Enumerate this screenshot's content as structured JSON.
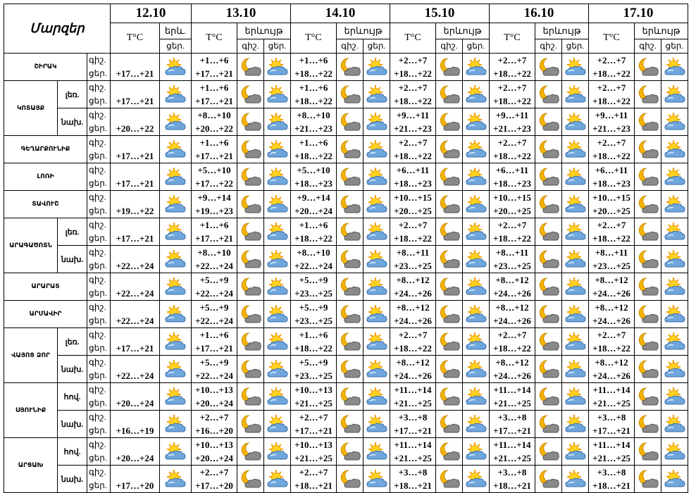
{
  "header": {
    "title": "Մարզեր",
    "temp": "T°C",
    "phenomenon": "երևույթ",
    "phenomenon_short": "երև.",
    "night": "գիշ.",
    "day": "ցեր."
  },
  "dates": [
    "12.10",
    "13.10",
    "14.10",
    "15.10",
    "16.10",
    "17.10"
  ],
  "regions": [
    {
      "name": "ՇԻՐԱԿ",
      "zones": [
        {
          "forecast": [
            [
              "+17…+21"
            ],
            [
              "+1…+6",
              "+17…+21"
            ],
            [
              "+1…+6",
              "+18…+22"
            ],
            [
              "+2…+7",
              "+18…+22"
            ],
            [
              "+2…+7",
              "+18…+22"
            ],
            [
              "+2…+7",
              "+18…+22"
            ]
          ]
        }
      ]
    },
    {
      "name": "ԿՈՏԱՅՔ",
      "zones": [
        {
          "zone": "լեռ.",
          "forecast": [
            [
              "+17…+21"
            ],
            [
              "+1…+6",
              "+17…+21"
            ],
            [
              "+1…+6",
              "+18…+22"
            ],
            [
              "+2…+7",
              "+18…+22"
            ],
            [
              "+2…+7",
              "+18…+22"
            ],
            [
              "+2…+7",
              "+18…+22"
            ]
          ]
        },
        {
          "zone": "նախ.",
          "forecast": [
            [
              "+20…+22"
            ],
            [
              "+8…+10",
              "+20…+22"
            ],
            [
              "+8…+10",
              "+21…+23"
            ],
            [
              "+9…+11",
              "+21…+23"
            ],
            [
              "+9…+11",
              "+21…+23"
            ],
            [
              "+9…+11",
              "+21…+23"
            ]
          ]
        }
      ]
    },
    {
      "name": "ԳԵՂԱՐՔՈՒՆԻՔ",
      "zones": [
        {
          "forecast": [
            [
              "+17…+21"
            ],
            [
              "+1…+6",
              "+17…+21"
            ],
            [
              "+1…+6",
              "+18…+22"
            ],
            [
              "+2…+7",
              "+18…+22"
            ],
            [
              "+2…+7",
              "+18…+22"
            ],
            [
              "+2…+7",
              "+18…+22"
            ]
          ]
        }
      ]
    },
    {
      "name": "ԼՈՌԻ",
      "zones": [
        {
          "forecast": [
            [
              "+17…+21"
            ],
            [
              "+5…+10",
              "+17…+22"
            ],
            [
              "+5…+10",
              "+18…+23"
            ],
            [
              "+6…+11",
              "+18…+23"
            ],
            [
              "+6…+11",
              "+18…+23"
            ],
            [
              "+6…+11",
              "+18…+23"
            ]
          ]
        }
      ]
    },
    {
      "name": "ՏԱՎՈՒՇ",
      "zones": [
        {
          "forecast": [
            [
              "+19…+22"
            ],
            [
              "+9…+14",
              "+19…+23"
            ],
            [
              "+9…+14",
              "+20…+24"
            ],
            [
              "+10…+15",
              "+20…+25"
            ],
            [
              "+10…+15",
              "+20…+25"
            ],
            [
              "+10…+15",
              "+20…+25"
            ]
          ]
        }
      ]
    },
    {
      "name": "ԱՐԱԳԱԾՈՏՆ",
      "zones": [
        {
          "zone": "լեռ.",
          "forecast": [
            [
              "+17…+21"
            ],
            [
              "+1…+6",
              "+17…+21"
            ],
            [
              "+1…+6",
              "+18…+22"
            ],
            [
              "+2…+7",
              "+18…+22"
            ],
            [
              "+2…+7",
              "+18…+22"
            ],
            [
              "+2…+7",
              "+18…+22"
            ]
          ]
        },
        {
          "zone": "նախ.",
          "forecast": [
            [
              "+22…+24"
            ],
            [
              "+8…+10",
              "+22…+24"
            ],
            [
              "+8…+10",
              "+22…+24"
            ],
            [
              "+8…+11",
              "+23…+25"
            ],
            [
              "+8…+11",
              "+23…+25"
            ],
            [
              "+8…+11",
              "+23…+25"
            ]
          ]
        }
      ]
    },
    {
      "name": "ԱՐԱՐԱՏ",
      "zones": [
        {
          "forecast": [
            [
              "+22…+24"
            ],
            [
              "+5…+9",
              "+22…+24"
            ],
            [
              "+5…+9",
              "+23…+25"
            ],
            [
              "+8…+12",
              "+24…+26"
            ],
            [
              "+8…+12",
              "+24…+26"
            ],
            [
              "+8…+12",
              "+24…+26"
            ]
          ]
        }
      ]
    },
    {
      "name": "ԱՐՄԱՎԻՐ",
      "zones": [
        {
          "forecast": [
            [
              "+22…+24"
            ],
            [
              "+5…+9",
              "+22…+24"
            ],
            [
              "+5…+9",
              "+23…+25"
            ],
            [
              "+8…+12",
              "+24…+26"
            ],
            [
              "+8…+12",
              "+24…+26"
            ],
            [
              "+8…+12",
              "+24…+26"
            ]
          ]
        }
      ]
    },
    {
      "name": "ՎԱՅՈՑ ՁՈՐ",
      "zones": [
        {
          "zone": "լեռ.",
          "forecast": [
            [
              "+17…+21"
            ],
            [
              "+1…+6",
              "+17…+21"
            ],
            [
              "+1…+6",
              "+18…+22"
            ],
            [
              "+2…+7",
              "+18…+22"
            ],
            [
              "+2…+7",
              "+18…+22"
            ],
            [
              "+2…+7",
              "+18…+22"
            ]
          ]
        },
        {
          "zone": "նախ.",
          "forecast": [
            [
              "+22…+24"
            ],
            [
              "+5…+9",
              "+22…+24"
            ],
            [
              "+5…+9",
              "+23…+25"
            ],
            [
              "+8…+12",
              "+24…+26"
            ],
            [
              "+8…+12",
              "+24…+26"
            ],
            [
              "+8…+12",
              "+24…+26"
            ]
          ]
        }
      ]
    },
    {
      "name": "ՍՅՈՒՆԻՔ",
      "zones": [
        {
          "zone": "հով.",
          "forecast": [
            [
              "+20…+24"
            ],
            [
              "+10…+13",
              "+20…+24"
            ],
            [
              "+10…+13",
              "+21…+25"
            ],
            [
              "+11…+14",
              "+21…+25"
            ],
            [
              "+11…+14",
              "+21…+25"
            ],
            [
              "+11…+14",
              "+21…+25"
            ]
          ]
        },
        {
          "zone": "նախ.",
          "forecast": [
            [
              "+16…+19"
            ],
            [
              "+2…+7",
              "+16…+20"
            ],
            [
              "+2…+7",
              "+17…+21"
            ],
            [
              "+3…+8",
              "+17…+21"
            ],
            [
              "+3…+8",
              "+17…+21"
            ],
            [
              "+3…+8",
              "+17…+21"
            ]
          ]
        }
      ]
    },
    {
      "name": "ԱՐՑԱԽ",
      "zones": [
        {
          "zone": "հով.",
          "forecast": [
            [
              "+20…+24"
            ],
            [
              "+10…+13",
              "+20…+24"
            ],
            [
              "+10…+13",
              "+21…+25"
            ],
            [
              "+11…+14",
              "+21…+25"
            ],
            [
              "+11…+14",
              "+21…+25"
            ],
            [
              "+11…+14",
              "+21…+25"
            ]
          ]
        },
        {
          "zone": "նախ.",
          "forecast": [
            [
              "+17…+20"
            ],
            [
              "+2…+7",
              "+17…+20"
            ],
            [
              "+2…+7",
              "+18…+21"
            ],
            [
              "+3…+8",
              "+18…+21"
            ],
            [
              "+3…+8",
              "+18…+21"
            ],
            [
              "+3…+8",
              "+18…+21"
            ]
          ]
        }
      ]
    }
  ]
}
